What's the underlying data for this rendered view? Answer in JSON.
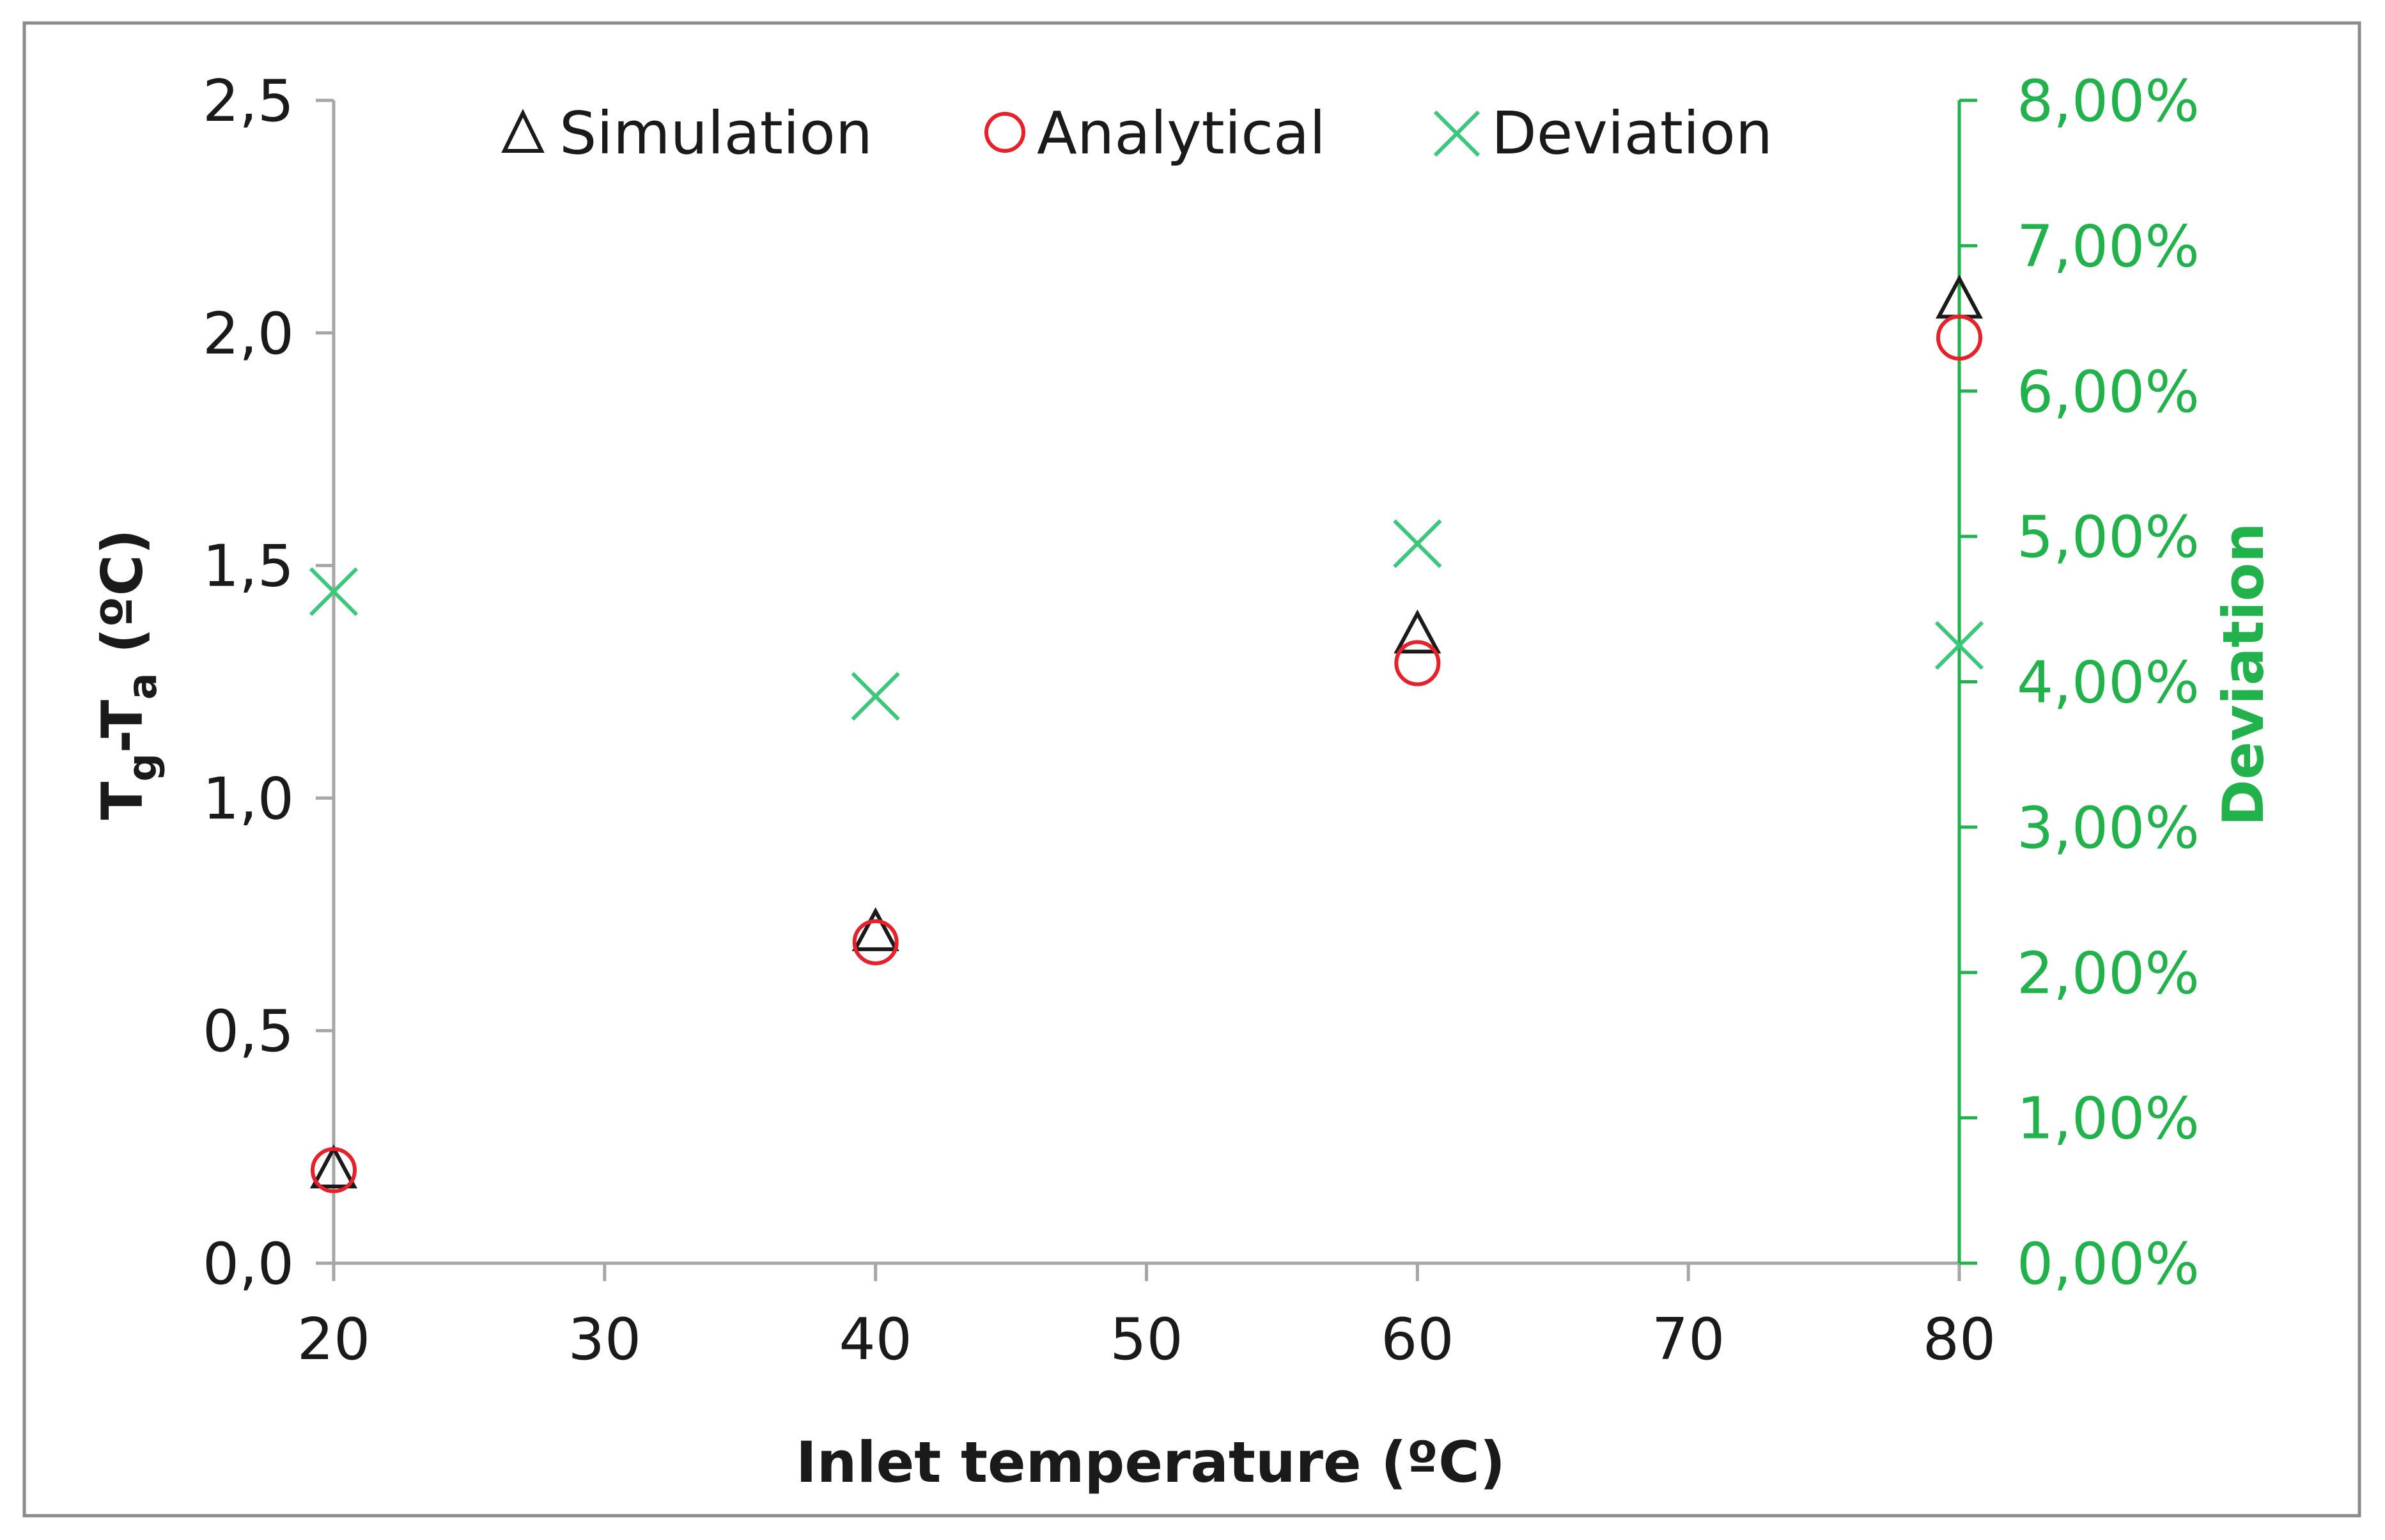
{
  "chart_data": {
    "type": "scatter",
    "title": "",
    "xlabel": "Inlet temperature (ºC)",
    "ylabel": {
      "parts": [
        {
          "text": "T",
          "baseline": "normal"
        },
        {
          "text": "g",
          "baseline": "sub"
        },
        {
          "text": "-T",
          "baseline": "normal"
        },
        {
          "text": "a",
          "baseline": "sub"
        },
        {
          "text": " (ºC)",
          "baseline": "normal"
        }
      ]
    },
    "y2label": "Deviation",
    "xlim": [
      20,
      80
    ],
    "ylim": [
      0,
      2.5
    ],
    "y2lim": [
      0,
      0.08
    ],
    "x_ticks": [
      "20",
      "30",
      "40",
      "50",
      "60",
      "70",
      "80"
    ],
    "y_ticks": [
      "0,0",
      "0,5",
      "1,0",
      "1,5",
      "2,0",
      "2,5"
    ],
    "y2_ticks": [
      "0,00%",
      "1,00%",
      "2,00%",
      "3,00%",
      "4,00%",
      "5,00%",
      "6,00%",
      "7,00%",
      "8,00%"
    ],
    "x_tick_values": [
      20,
      30,
      40,
      50,
      60,
      70,
      80
    ],
    "y_tick_values": [
      0,
      0.5,
      1.0,
      1.5,
      2.0,
      2.5
    ],
    "y2_tick_values": [
      0,
      0.01,
      0.02,
      0.03,
      0.04,
      0.05,
      0.06,
      0.07,
      0.08
    ],
    "legend_position": "top",
    "series": [
      {
        "name": "Simulation",
        "marker": "triangle",
        "color": "#1a1a1a",
        "axis": "left",
        "x": [
          20,
          40,
          60,
          80
        ],
        "y": [
          0.2,
          0.71,
          1.35,
          2.07
        ]
      },
      {
        "name": "Analytical",
        "marker": "circle",
        "color": "#e8202a",
        "axis": "left",
        "x": [
          20,
          40,
          60,
          80
        ],
        "y": [
          0.2,
          0.69,
          1.29,
          1.99
        ]
      },
      {
        "name": "Deviation",
        "marker": "x",
        "color": "#3cc87a",
        "axis": "right",
        "x": [
          20,
          40,
          60,
          80
        ],
        "y": [
          0.0462,
          0.039,
          0.0495,
          0.0425
        ]
      }
    ]
  },
  "colors": {
    "left_axis": "#a6a6a6",
    "right_axis": "#22b24c",
    "right_tick_text": "#22b24c",
    "frame": "#8a8a8a",
    "text": "#1a1a1a"
  }
}
